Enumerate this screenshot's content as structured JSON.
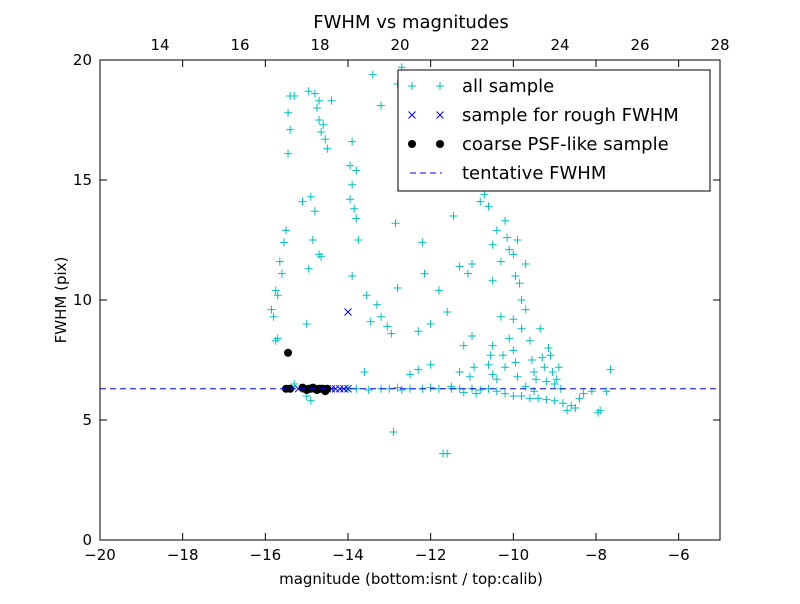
{
  "chart_data": {
    "type": "scatter",
    "title": "FWHM vs magnitudes",
    "xlabel": "magnitude (bottom:isnt / top:calib)",
    "ylabel": "FWHM (pix)",
    "xlim": [
      -20,
      -5
    ],
    "ylim": [
      0,
      20
    ],
    "x_ticks": [
      "−20",
      "−18",
      "−16",
      "−14",
      "−12",
      "−10",
      "−8",
      "−6"
    ],
    "x_tick_values": [
      -20,
      -18,
      -16,
      -14,
      -12,
      -10,
      -8,
      -6
    ],
    "y_ticks": [
      "0",
      "5",
      "10",
      "15",
      "20"
    ],
    "y_tick_values": [
      0,
      5,
      10,
      15,
      20
    ],
    "top_xlim": [
      12.5,
      28
    ],
    "top_ticks": [
      "14",
      "16",
      "18",
      "20",
      "22",
      "24",
      "26",
      "28"
    ],
    "top_tick_values": [
      14,
      16,
      18,
      20,
      22,
      24,
      26,
      28
    ],
    "grid": false,
    "legend_position": "top-right",
    "legend": [
      {
        "label": "all sample",
        "marker": "+",
        "color": "#00bfbf"
      },
      {
        "label": "sample for rough FWHM",
        "marker": "x",
        "color": "#0000ff"
      },
      {
        "label": "coarse PSF-like sample",
        "marker": "o",
        "color": "#000000"
      },
      {
        "label": "tentative FWHM",
        "marker": "dashed-line",
        "color": "#0000ff"
      }
    ],
    "tentative_fwhm": 6.3,
    "series": [
      {
        "name": "all sample",
        "marker": "+",
        "color": "#00bfbf",
        "points": [
          [
            -15.4,
            18.5
          ],
          [
            -15.3,
            18.5
          ],
          [
            -15.45,
            17.8
          ],
          [
            -15.4,
            17.1
          ],
          [
            -15.45,
            16.1
          ],
          [
            -14.95,
            18.7
          ],
          [
            -14.8,
            18.6
          ],
          [
            -14.7,
            18.3
          ],
          [
            -14.75,
            18.0
          ],
          [
            -14.7,
            17.5
          ],
          [
            -14.6,
            17.3
          ],
          [
            -14.65,
            17.0
          ],
          [
            -14.55,
            16.7
          ],
          [
            -14.5,
            16.3
          ],
          [
            -14.4,
            18.3
          ],
          [
            -13.9,
            16.6
          ],
          [
            -13.4,
            19.4
          ],
          [
            -13.2,
            18.1
          ],
          [
            -12.8,
            19.0
          ],
          [
            -12.7,
            19.7
          ],
          [
            -15.5,
            12.9
          ],
          [
            -15.55,
            12.4
          ],
          [
            -15.65,
            11.6
          ],
          [
            -15.6,
            11.1
          ],
          [
            -15.75,
            10.4
          ],
          [
            -15.7,
            10.2
          ],
          [
            -15.85,
            9.6
          ],
          [
            -15.8,
            9.3
          ],
          [
            -15.7,
            8.4
          ],
          [
            -15.75,
            8.3
          ],
          [
            -15.1,
            14.1
          ],
          [
            -14.9,
            14.3
          ],
          [
            -14.8,
            13.7
          ],
          [
            -14.85,
            12.5
          ],
          [
            -14.7,
            11.9
          ],
          [
            -14.65,
            11.8
          ],
          [
            -14.95,
            11.3
          ],
          [
            -15.0,
            9.0
          ],
          [
            -13.95,
            15.6
          ],
          [
            -13.8,
            15.4
          ],
          [
            -13.9,
            14.8
          ],
          [
            -13.95,
            14.2
          ],
          [
            -13.85,
            13.8
          ],
          [
            -13.8,
            13.4
          ],
          [
            -13.75,
            12.5
          ],
          [
            -13.9,
            11.0
          ],
          [
            -13.55,
            10.2
          ],
          [
            -13.3,
            9.8
          ],
          [
            -13.45,
            9.1
          ],
          [
            -13.2,
            9.3
          ],
          [
            -13.05,
            8.9
          ],
          [
            -12.95,
            8.6
          ],
          [
            -12.85,
            13.2
          ],
          [
            -12.8,
            10.5
          ],
          [
            -12.2,
            12.4
          ],
          [
            -12.15,
            11.1
          ],
          [
            -12.3,
            8.7
          ],
          [
            -12.0,
            9.0
          ],
          [
            -11.6,
            9.5
          ],
          [
            -11.8,
            10.4
          ],
          [
            -11.45,
            13.5
          ],
          [
            -11.3,
            11.4
          ],
          [
            -11.1,
            11.1
          ],
          [
            -11.0,
            11.5
          ],
          [
            -10.8,
            14.1
          ],
          [
            -10.7,
            14.4
          ],
          [
            -10.6,
            13.9
          ],
          [
            -10.5,
            12.3
          ],
          [
            -10.4,
            12.9
          ],
          [
            -10.5,
            10.8
          ],
          [
            -10.3,
            11.6
          ],
          [
            -10.2,
            13.3
          ],
          [
            -10.15,
            12.6
          ],
          [
            -10.1,
            12.1
          ],
          [
            -10.0,
            11.9
          ],
          [
            -9.95,
            11.0
          ],
          [
            -9.85,
            10.7
          ],
          [
            -9.8,
            10.0
          ],
          [
            -9.7,
            11.5
          ],
          [
            -9.9,
            12.5
          ],
          [
            -10.0,
            9.2
          ],
          [
            -10.3,
            9.3
          ],
          [
            -10.5,
            8.1
          ],
          [
            -10.55,
            7.7
          ],
          [
            -10.6,
            7.3
          ],
          [
            -10.5,
            6.9
          ],
          [
            -10.4,
            6.7
          ],
          [
            -10.25,
            7.7
          ],
          [
            -10.2,
            7.2
          ],
          [
            -10.1,
            8.4
          ],
          [
            -10.0,
            7.9
          ],
          [
            -9.95,
            7.4
          ],
          [
            -9.9,
            6.8
          ],
          [
            -9.8,
            8.8
          ],
          [
            -9.7,
            9.6
          ],
          [
            -9.6,
            8.3
          ],
          [
            -9.55,
            7.5
          ],
          [
            -9.5,
            7.0
          ],
          [
            -9.45,
            6.7
          ],
          [
            -9.35,
            8.8
          ],
          [
            -9.3,
            7.6
          ],
          [
            -9.25,
            7.2
          ],
          [
            -9.2,
            6.6
          ],
          [
            -9.15,
            8.0
          ],
          [
            -9.1,
            7.7
          ],
          [
            -9.05,
            7.0
          ],
          [
            -8.95,
            6.7
          ],
          [
            -8.9,
            7.2
          ],
          [
            -9.0,
            6.5
          ],
          [
            -8.85,
            6.3
          ],
          [
            -11.0,
            8.5
          ],
          [
            -11.2,
            8.1
          ],
          [
            -10.95,
            7.2
          ],
          [
            -11.05,
            6.8
          ],
          [
            -11.3,
            7.0
          ],
          [
            -11.5,
            6.4
          ],
          [
            -12.9,
            4.5
          ],
          [
            -11.7,
            3.6
          ],
          [
            -11.6,
            3.6
          ],
          [
            -12.5,
            6.9
          ],
          [
            -12.3,
            7.1
          ],
          [
            -12.0,
            7.3
          ],
          [
            -13.6,
            7.0
          ],
          [
            -14.9,
            5.8
          ],
          [
            -15.3,
            6.5
          ],
          [
            -15.0,
            6.0
          ],
          [
            -13.5,
            6.25
          ],
          [
            -13.0,
            6.3
          ],
          [
            -12.8,
            6.35
          ],
          [
            -12.5,
            6.3
          ],
          [
            -12.2,
            6.3
          ],
          [
            -12.0,
            6.35
          ],
          [
            -11.8,
            6.3
          ],
          [
            -11.5,
            6.3
          ],
          [
            -11.3,
            6.3
          ],
          [
            -11.0,
            6.3
          ],
          [
            -10.8,
            6.25
          ],
          [
            -10.6,
            6.3
          ],
          [
            -10.4,
            6.2
          ],
          [
            -10.2,
            6.1
          ],
          [
            -10.0,
            6.0
          ],
          [
            -9.8,
            6.0
          ],
          [
            -9.6,
            5.9
          ],
          [
            -9.4,
            5.9
          ],
          [
            -9.2,
            5.85
          ],
          [
            -9.0,
            5.8
          ],
          [
            -8.8,
            5.7
          ],
          [
            -8.6,
            5.6
          ],
          [
            -8.5,
            5.5
          ],
          [
            -8.7,
            5.4
          ],
          [
            -8.4,
            5.9
          ],
          [
            -8.3,
            6.1
          ],
          [
            -8.1,
            6.2
          ],
          [
            -7.9,
            5.4
          ],
          [
            -7.95,
            5.3
          ],
          [
            -7.75,
            6.2
          ],
          [
            -7.65,
            7.1
          ],
          [
            -9.5,
            6.2
          ],
          [
            -9.7,
            6.4
          ],
          [
            -10.9,
            6.1
          ],
          [
            -11.2,
            6.15
          ],
          [
            -12.7,
            6.25
          ],
          [
            -13.2,
            6.3
          ],
          [
            -13.8,
            6.3
          ],
          [
            -14.0,
            6.3
          ]
        ]
      },
      {
        "name": "sample for rough FWHM",
        "marker": "x",
        "color": "#0000ff",
        "points": [
          [
            -14.0,
            9.5
          ],
          [
            -14.2,
            6.3
          ],
          [
            -14.1,
            6.3
          ],
          [
            -14.0,
            6.3
          ],
          [
            -14.3,
            6.3
          ],
          [
            -14.5,
            6.3
          ],
          [
            -14.4,
            6.3
          ],
          [
            -14.6,
            6.3
          ],
          [
            -15.2,
            6.3
          ]
        ]
      },
      {
        "name": "coarse PSF-like sample",
        "marker": "o",
        "color": "#000000",
        "points": [
          [
            -15.45,
            7.8
          ],
          [
            -15.5,
            6.3
          ],
          [
            -15.4,
            6.3
          ],
          [
            -15.1,
            6.35
          ],
          [
            -15.05,
            6.3
          ],
          [
            -15.0,
            6.25
          ],
          [
            -14.95,
            6.3
          ],
          [
            -14.9,
            6.3
          ],
          [
            -14.85,
            6.35
          ],
          [
            -14.8,
            6.3
          ],
          [
            -14.75,
            6.25
          ],
          [
            -14.7,
            6.3
          ],
          [
            -14.65,
            6.3
          ],
          [
            -14.6,
            6.3
          ],
          [
            -14.55,
            6.2
          ],
          [
            -14.5,
            6.3
          ]
        ]
      }
    ]
  }
}
